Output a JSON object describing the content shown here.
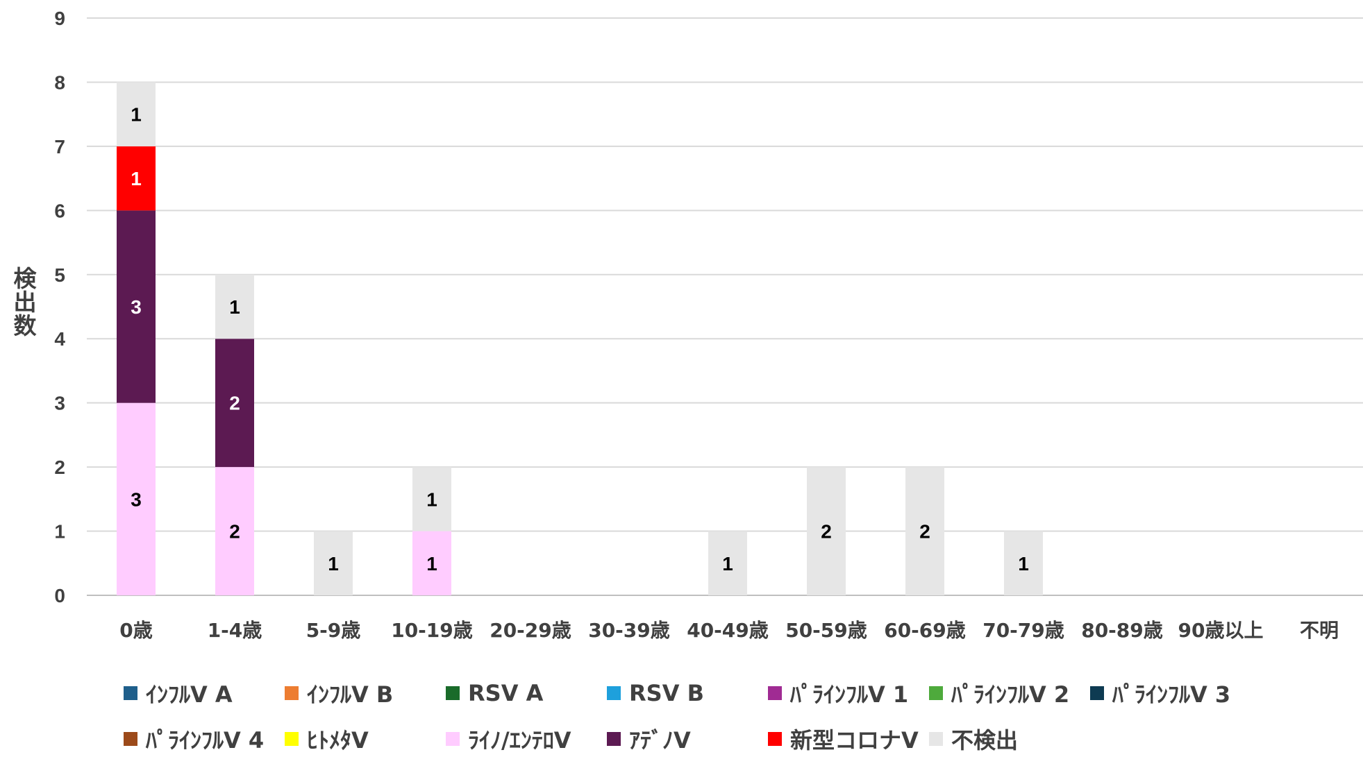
{
  "chart_data": {
    "type": "bar",
    "stacked": true,
    "title": "",
    "xlabel": "",
    "ylabel": "検出数",
    "ylim": [
      0,
      9
    ],
    "yticks": [
      0,
      1,
      2,
      3,
      4,
      5,
      6,
      7,
      8,
      9
    ],
    "grid": true,
    "legend_position": "bottom",
    "categories": [
      "0歳",
      "1-4歳",
      "5-9歳",
      "10-19歳",
      "20-29歳",
      "30-39歳",
      "40-49歳",
      "50-59歳",
      "60-69歳",
      "70-79歳",
      "80-89歳",
      "90歳以上",
      "不明"
    ],
    "series": [
      {
        "name": "ｲﾝﾌﾙV A",
        "color": "#1f5f8b",
        "values": [
          0,
          0,
          0,
          0,
          0,
          0,
          0,
          0,
          0,
          0,
          0,
          0,
          0
        ]
      },
      {
        "name": "ｲﾝﾌﾙV B",
        "color": "#ed7d31",
        "values": [
          0,
          0,
          0,
          0,
          0,
          0,
          0,
          0,
          0,
          0,
          0,
          0,
          0
        ]
      },
      {
        "name": "RSV A",
        "color": "#1a6b2a",
        "values": [
          0,
          0,
          0,
          0,
          0,
          0,
          0,
          0,
          0,
          0,
          0,
          0,
          0
        ]
      },
      {
        "name": "RSV B",
        "color": "#1ea0dc",
        "values": [
          0,
          0,
          0,
          0,
          0,
          0,
          0,
          0,
          0,
          0,
          0,
          0,
          0
        ]
      },
      {
        "name": "ﾊﾟﾗｲﾝﾌﾙV 1",
        "color": "#a02b93",
        "values": [
          0,
          0,
          0,
          0,
          0,
          0,
          0,
          0,
          0,
          0,
          0,
          0,
          0
        ]
      },
      {
        "name": "ﾊﾟﾗｲﾝﾌﾙV 2",
        "color": "#4eaa3c",
        "values": [
          0,
          0,
          0,
          0,
          0,
          0,
          0,
          0,
          0,
          0,
          0,
          0,
          0
        ]
      },
      {
        "name": "ﾊﾟﾗｲﾝﾌﾙV 3",
        "color": "#0e3b52",
        "values": [
          0,
          0,
          0,
          0,
          0,
          0,
          0,
          0,
          0,
          0,
          0,
          0,
          0
        ]
      },
      {
        "name": "ﾊﾟﾗｲﾝﾌﾙV 4",
        "color": "#9c4a1a",
        "values": [
          0,
          0,
          0,
          0,
          0,
          0,
          0,
          0,
          0,
          0,
          0,
          0,
          0
        ]
      },
      {
        "name": "ﾋﾄﾒﾀV",
        "color": "#ffff00",
        "values": [
          0,
          0,
          0,
          0,
          0,
          0,
          0,
          0,
          0,
          0,
          0,
          0,
          0
        ]
      },
      {
        "name": "ﾗｲﾉ/ｴﾝﾃﾛV",
        "color": "#ffccff",
        "values": [
          3,
          2,
          0,
          1,
          0,
          0,
          0,
          0,
          0,
          0,
          0,
          0,
          0
        ]
      },
      {
        "name": "ｱﾃﾞﾉV",
        "color": "#5c1a52",
        "values": [
          3,
          2,
          0,
          0,
          0,
          0,
          0,
          0,
          0,
          0,
          0,
          0,
          0
        ]
      },
      {
        "name": "新型コロナV",
        "color": "#ff0000",
        "values": [
          1,
          0,
          0,
          0,
          0,
          0,
          0,
          0,
          0,
          0,
          0,
          0,
          0
        ]
      },
      {
        "name": "不検出",
        "color": "#e6e6e6",
        "values": [
          1,
          1,
          1,
          1,
          0,
          0,
          1,
          2,
          2,
          1,
          0,
          0,
          0
        ]
      }
    ]
  }
}
